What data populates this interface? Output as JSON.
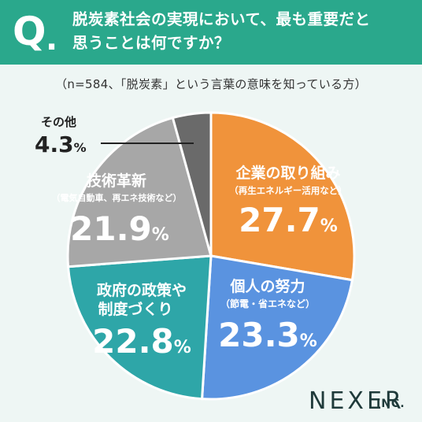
{
  "header": {
    "q_letter": "Q",
    "q_dot": ".",
    "question_line1": "脱炭素社会の実現において、最も重要だと",
    "question_line2": "思うことは何ですか？"
  },
  "note": "（n=584、「脱炭素」という言葉の意味を知っている方）",
  "brand": {
    "name": "NEXER",
    "suffix": "INC."
  },
  "colors": {
    "header": "#2aa88c",
    "orange": "#f0933b",
    "blue": "#5a93e0",
    "teal": "#2ea6a8",
    "gray": "#a7a7a7",
    "dark_gray": "#6a6a6a"
  },
  "chart_data": {
    "type": "pie",
    "slices": [
      {
        "id": "corporate",
        "label": "企業の取り組み",
        "sublabel": "（再生エネルギー活用など）",
        "value": 27.7,
        "value_text": "27.7",
        "unit": "%",
        "color": "#f0933b"
      },
      {
        "id": "personal",
        "label": "個人の努力",
        "sublabel": "（節電・省エネなど）",
        "value": 23.3,
        "value_text": "23.3",
        "unit": "%",
        "color": "#5a93e0"
      },
      {
        "id": "policy",
        "label_lines": [
          "政府の政策や",
          "制度づくり"
        ],
        "value": 22.8,
        "value_text": "22.8",
        "unit": "%",
        "color": "#2ea6a8"
      },
      {
        "id": "tech",
        "label": "技術革新",
        "sublabel": "（電気自動車、再エネ技術など）",
        "value": 21.9,
        "value_text": "21.9",
        "unit": "%",
        "color": "#a7a7a7"
      },
      {
        "id": "other",
        "label": "その他",
        "value": 4.3,
        "value_text": "4.3",
        "unit": "%",
        "color": "#6a6a6a"
      }
    ]
  }
}
